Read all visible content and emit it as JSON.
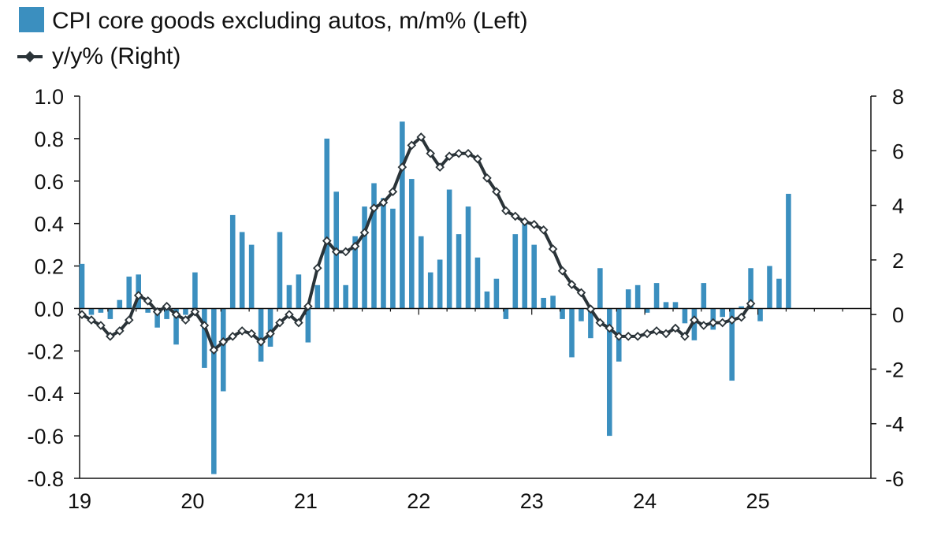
{
  "chart_data": {
    "type": "bar+line",
    "title": "",
    "legend": [
      {
        "label": "CPI core goods excluding autos, m/m% (Left)",
        "kind": "bar",
        "color": "#3b8fbf"
      },
      {
        "label": "y/y% (Right)",
        "kind": "line",
        "color": "#2a3338"
      }
    ],
    "x_ticks": [
      "19",
      "20",
      "21",
      "22",
      "23",
      "24",
      "25"
    ],
    "left_axis": {
      "range": [
        -0.8,
        1.0
      ],
      "ticks": [
        "-0.8",
        "-0.6",
        "-0.4",
        "-0.2",
        "0.0",
        "0.2",
        "0.4",
        "0.6",
        "0.8",
        "1.0"
      ]
    },
    "right_axis": {
      "range": [
        -6,
        8
      ],
      "ticks": [
        "-6",
        "-4",
        "-2",
        "0",
        "2",
        "4",
        "6",
        "8"
      ]
    },
    "x_range": [
      2019.0,
      2026.0
    ],
    "start": 2019.0,
    "step": 0.08333,
    "bar_series": {
      "name": "CPI core goods excluding autos, m/m% (Left)",
      "values": [
        0.21,
        -0.03,
        -0.02,
        -0.05,
        0.04,
        0.15,
        0.16,
        -0.02,
        -0.09,
        -0.05,
        -0.17,
        -0.03,
        0.17,
        -0.28,
        -0.78,
        -0.39,
        0.44,
        0.36,
        0.3,
        -0.25,
        -0.18,
        0.36,
        0.11,
        0.16,
        -0.16,
        0.11,
        0.8,
        0.55,
        0.11,
        0.34,
        0.48,
        0.59,
        0.52,
        0.47,
        0.88,
        0.61,
        0.34,
        0.17,
        0.23,
        0.56,
        0.35,
        0.48,
        0.24,
        0.08,
        0.14,
        -0.05,
        0.35,
        0.41,
        0.3,
        0.05,
        0.06,
        -0.05,
        -0.23,
        -0.06,
        -0.14,
        0.19,
        -0.6,
        -0.25,
        0.09,
        0.11,
        -0.02,
        0.12,
        0.03,
        0.03,
        -0.07,
        -0.15,
        0.12,
        -0.1,
        -0.04,
        -0.34,
        0.01,
        0.19,
        -0.06,
        0.2,
        0.14,
        0.54
      ]
    },
    "line_series": {
      "name": "y/y% (Right)",
      "values": [
        0.0,
        -0.2,
        -0.4,
        -0.8,
        -0.6,
        -0.2,
        0.7,
        0.5,
        0.1,
        0.3,
        0.0,
        -0.2,
        0.1,
        -0.4,
        -1.3,
        -1.0,
        -0.8,
        -0.6,
        -0.7,
        -1.0,
        -0.7,
        -0.3,
        0.0,
        -0.3,
        0.3,
        1.7,
        2.7,
        2.3,
        2.3,
        2.5,
        3.0,
        3.9,
        4.1,
        4.5,
        5.4,
        6.2,
        6.5,
        5.9,
        5.4,
        5.8,
        5.9,
        5.9,
        5.7,
        5.0,
        4.5,
        3.8,
        3.6,
        3.4,
        3.3,
        3.1,
        2.4,
        1.6,
        1.1,
        0.8,
        0.2,
        -0.3,
        -0.5,
        -0.8,
        -0.8,
        -0.8,
        -0.7,
        -0.6,
        -0.7,
        -0.5,
        -0.8,
        -0.2,
        -0.4,
        -0.3,
        -0.3,
        -0.2,
        -0.1,
        0.4
      ]
    }
  }
}
